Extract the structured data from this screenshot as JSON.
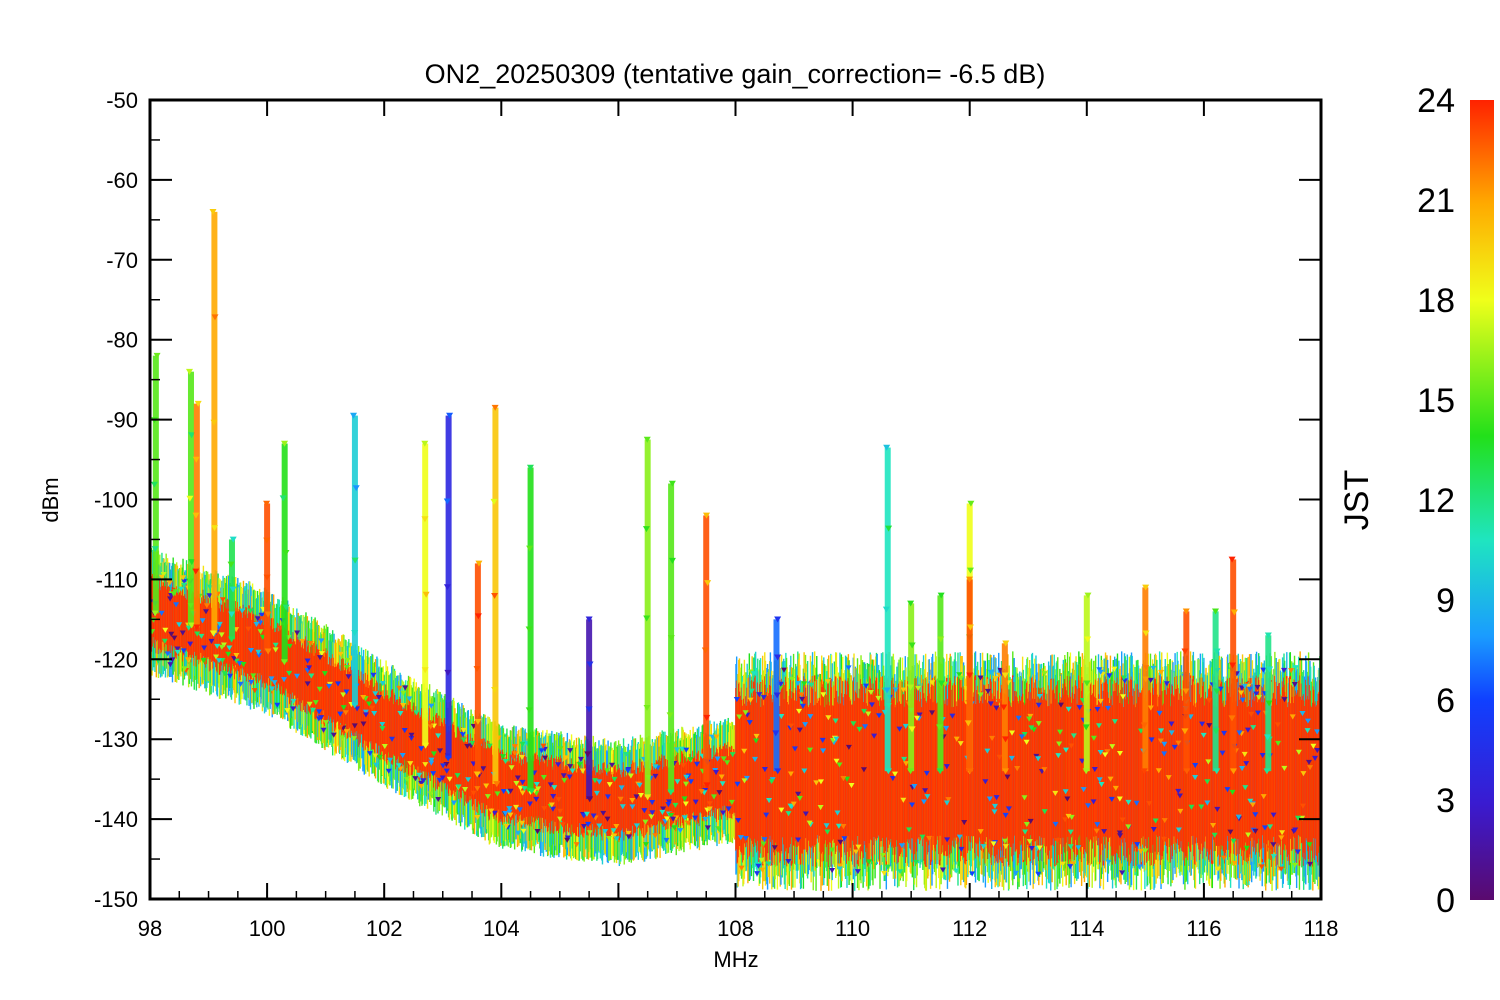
{
  "chart_data": {
    "type": "scatter",
    "title": "ON2_20250309 (tentative gain_correction= -6.5 dB)",
    "xlabel": "MHz",
    "ylabel": "dBm",
    "xlim": [
      98,
      118
    ],
    "ylim": [
      -150,
      -50
    ],
    "xticks": [
      "98",
      "100",
      "102",
      "104",
      "106",
      "108",
      "110",
      "112",
      "114",
      "116",
      "118"
    ],
    "yticks": [
      "-50",
      "-60",
      "-70",
      "-80",
      "-90",
      "-100",
      "-110",
      "-120",
      "-130",
      "-140",
      "-150"
    ],
    "colorbar": {
      "label": "JST",
      "range": [
        0,
        24
      ],
      "ticks": [
        "0",
        "3",
        "6",
        "9",
        "12",
        "15",
        "18",
        "21",
        "24"
      ],
      "colormap": "rainbow (purple-blue-cyan-green-yellow-orange-red)"
    },
    "marker": "triangle-down",
    "dominant_color": "#ff3300",
    "noise_floor": [
      {
        "x": 98.0,
        "y": -114
      },
      {
        "x": 100.0,
        "y": -119
      },
      {
        "x": 102.0,
        "y": -128
      },
      {
        "x": 104.0,
        "y": -136
      },
      {
        "x": 106.0,
        "y": -138
      },
      {
        "x": 108.0,
        "y": -135
      },
      {
        "x": 108.0,
        "y": -134
      },
      {
        "x": 118.0,
        "y": -134
      }
    ],
    "peaks": [
      {
        "x": 98.1,
        "y": -82,
        "jst": 15
      },
      {
        "x": 98.7,
        "y": -84,
        "jst": 15
      },
      {
        "x": 98.8,
        "y": -88,
        "jst": 22
      },
      {
        "x": 99.1,
        "y": -64,
        "jst": 21
      },
      {
        "x": 99.4,
        "y": -105,
        "jst": 13
      },
      {
        "x": 100.0,
        "y": -100.5,
        "jst": 23
      },
      {
        "x": 100.3,
        "y": -93,
        "jst": 14
      },
      {
        "x": 101.5,
        "y": -89.5,
        "jst": 10
      },
      {
        "x": 102.7,
        "y": -93,
        "jst": 18
      },
      {
        "x": 103.1,
        "y": -89.5,
        "jst": 4
      },
      {
        "x": 103.6,
        "y": -108,
        "jst": 23
      },
      {
        "x": 103.9,
        "y": -88.5,
        "jst": 20
      },
      {
        "x": 104.5,
        "y": -96,
        "jst": 14
      },
      {
        "x": 105.5,
        "y": -115,
        "jst": 2
      },
      {
        "x": 106.5,
        "y": -92.5,
        "jst": 16
      },
      {
        "x": 106.9,
        "y": -98,
        "jst": 15
      },
      {
        "x": 107.5,
        "y": -102,
        "jst": 23
      },
      {
        "x": 108.7,
        "y": -115,
        "jst": 7
      },
      {
        "x": 110.6,
        "y": -93.5,
        "jst": 11
      },
      {
        "x": 111.0,
        "y": -113,
        "jst": 16
      },
      {
        "x": 111.5,
        "y": -112,
        "jst": 15
      },
      {
        "x": 112.0,
        "y": -100.5,
        "jst": 18
      },
      {
        "x": 112.0,
        "y": -110,
        "jst": 23
      },
      {
        "x": 112.6,
        "y": -118,
        "jst": 22
      },
      {
        "x": 114.0,
        "y": -112,
        "jst": 17
      },
      {
        "x": 115.0,
        "y": -111,
        "jst": 22
      },
      {
        "x": 115.7,
        "y": -114,
        "jst": 23
      },
      {
        "x": 116.2,
        "y": -114,
        "jst": 12
      },
      {
        "x": 116.5,
        "y": -107.5,
        "jst": 23
      },
      {
        "x": 117.1,
        "y": -117,
        "jst": 12
      }
    ]
  }
}
